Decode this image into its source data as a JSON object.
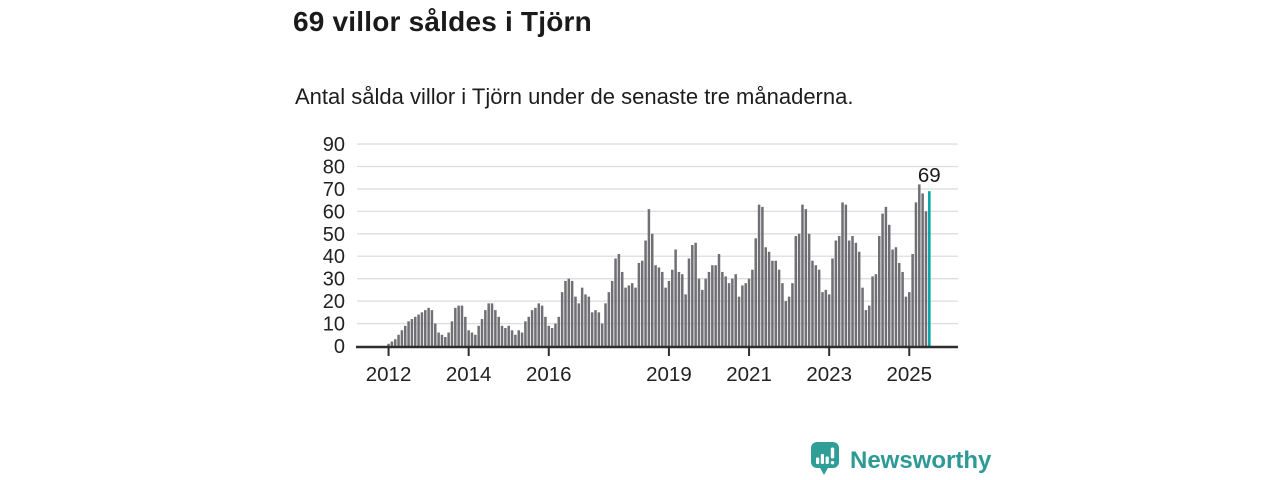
{
  "header": {
    "title": "69 villor såldes i Tjörn",
    "subtitle": "Antal sålda villor i Tjörn under de senaste tre månaderna."
  },
  "chart_data": {
    "type": "bar",
    "title": "69 villor såldes i Tjörn",
    "subtitle": "Antal sålda villor i Tjörn under de senaste tre månaderna.",
    "xlabel": "",
    "ylabel": "",
    "ylim": [
      0,
      90
    ],
    "grid": "horizontal",
    "y_ticks": [
      0,
      10,
      20,
      30,
      40,
      50,
      60,
      70,
      80,
      90
    ],
    "x_tick_labels": [
      "2012",
      "2014",
      "2016",
      "2019",
      "2021",
      "2023",
      "2025"
    ],
    "x_tick_indices": [
      0,
      24,
      48,
      84,
      108,
      132,
      156
    ],
    "start_label": "2012",
    "values": [
      1,
      2,
      3,
      5,
      7,
      9,
      11,
      12,
      13,
      14,
      15,
      16,
      17,
      16,
      10,
      6,
      5,
      4,
      6,
      11,
      17,
      18,
      18,
      13,
      7,
      6,
      5,
      9,
      12,
      16,
      19,
      19,
      16,
      13,
      9,
      8,
      9,
      7,
      5,
      7,
      6,
      11,
      13,
      16,
      17,
      19,
      18,
      13,
      9,
      8,
      10,
      13,
      24,
      29,
      30,
      29,
      22,
      19,
      26,
      23,
      22,
      15,
      16,
      15,
      10,
      19,
      24,
      29,
      39,
      41,
      33,
      26,
      27,
      28,
      26,
      37,
      38,
      47,
      61,
      50,
      36,
      35,
      33,
      26,
      29,
      34,
      43,
      33,
      32,
      23,
      39,
      45,
      46,
      30,
      25,
      30,
      33,
      36,
      36,
      41,
      33,
      31,
      28,
      30,
      32,
      22,
      27,
      28,
      30,
      34,
      48,
      63,
      62,
      44,
      42,
      38,
      38,
      34,
      28,
      20,
      22,
      28,
      49,
      50,
      63,
      61,
      50,
      38,
      36,
      34,
      24,
      25,
      23,
      39,
      47,
      49,
      64,
      63,
      47,
      49,
      46,
      42,
      26,
      16,
      18,
      31,
      32,
      49,
      59,
      62,
      54,
      43,
      44,
      37,
      33,
      22,
      24,
      41,
      64,
      72,
      68,
      60,
      69
    ],
    "highlight_last": true,
    "annotation": {
      "text": "69",
      "index": 162
    },
    "colors": {
      "bar": "#6f6f74",
      "highlight": "#00a5a3",
      "gridline": "#dedede",
      "axis": "#2e2e2e",
      "tick_label": "#222222",
      "annotation": "#1a1a1a"
    },
    "legend": "none"
  },
  "footer": {
    "brand": "Newsworthy",
    "brand_color": "#2d9a96"
  }
}
